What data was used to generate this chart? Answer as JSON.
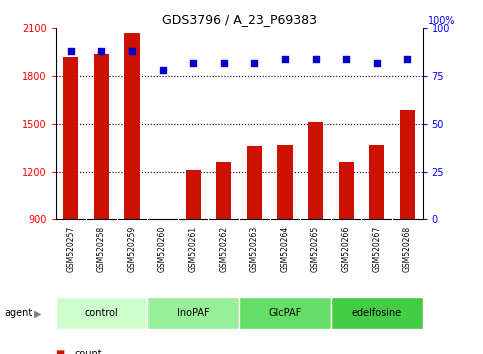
{
  "title": "GDS3796 / A_23_P69383",
  "samples": [
    "GSM520257",
    "GSM520258",
    "GSM520259",
    "GSM520260",
    "GSM520261",
    "GSM520262",
    "GSM520263",
    "GSM520264",
    "GSM520265",
    "GSM520266",
    "GSM520267",
    "GSM520268"
  ],
  "counts": [
    1920,
    1940,
    2070,
    870,
    1210,
    1260,
    1360,
    1365,
    1510,
    1260,
    1370,
    1590
  ],
  "percentile_ranks": [
    88,
    88,
    88,
    78,
    82,
    82,
    82,
    84,
    84,
    84,
    82,
    84
  ],
  "ylim_left": [
    900,
    2100
  ],
  "ylim_right": [
    0,
    100
  ],
  "yticks_left": [
    900,
    1200,
    1500,
    1800,
    2100
  ],
  "yticks_right": [
    0,
    25,
    50,
    75,
    100
  ],
  "groups": [
    {
      "label": "control",
      "start": 0,
      "end": 3,
      "color": "#ccffcc"
    },
    {
      "label": "InoPAF",
      "start": 3,
      "end": 6,
      "color": "#99ee99"
    },
    {
      "label": "GlcPAF",
      "start": 6,
      "end": 9,
      "color": "#66dd66"
    },
    {
      "label": "edelfosine",
      "start": 9,
      "end": 12,
      "color": "#44cc44"
    }
  ],
  "bar_color": "#cc1100",
  "dot_color": "#0000cc",
  "bar_width": 0.5,
  "background_color": "#ffffff",
  "plot_bg_color": "#ffffff",
  "sample_label_bg": "#cccccc",
  "legend_count_color": "#cc1100",
  "legend_pct_color": "#0000cc"
}
